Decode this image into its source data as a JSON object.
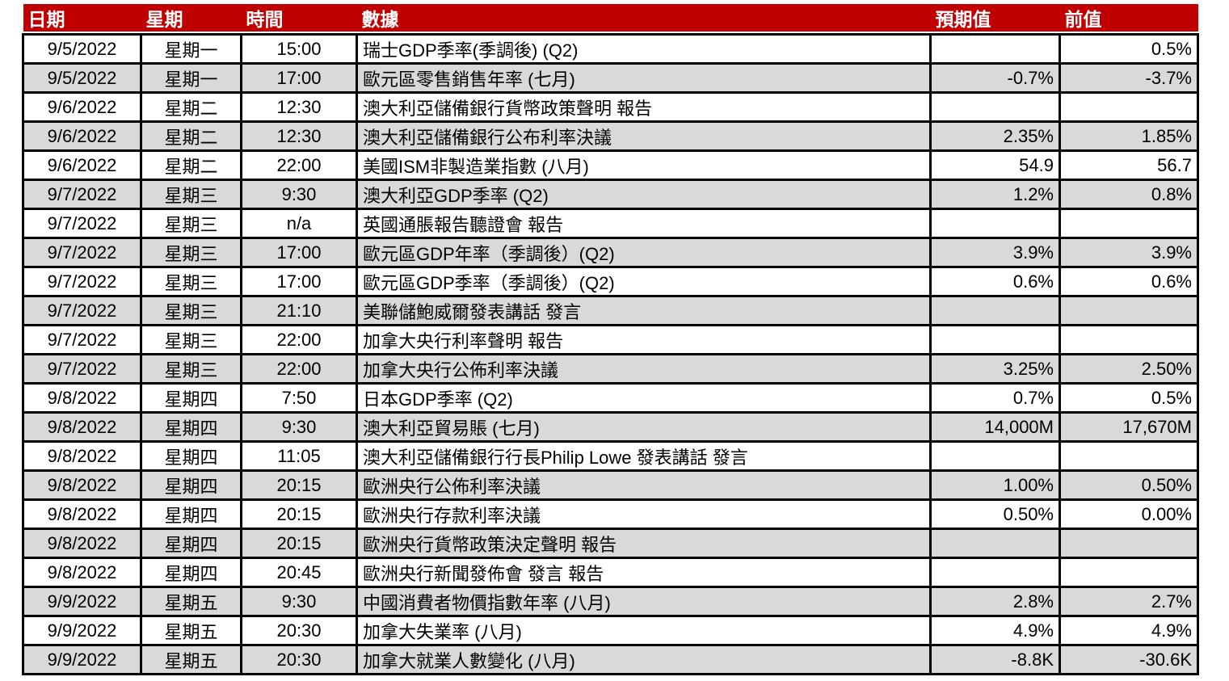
{
  "colors": {
    "header_bg": "#C00000",
    "header_fg": "#FFFFFF",
    "alt_row_bg": "#D9D9D9",
    "border": "#000000"
  },
  "header": {
    "date": "日期",
    "weekday": "星期",
    "time": "時間",
    "event": "數據",
    "expected": "預期值",
    "previous": "前值"
  },
  "table": {
    "rows": [
      {
        "date": "9/5/2022",
        "weekday": "星期一",
        "time": "15:00",
        "event": "瑞士GDP季率(季調後) (Q2)",
        "expected": "",
        "previous": "0.5%"
      },
      {
        "date": "9/5/2022",
        "weekday": "星期一",
        "time": "17:00",
        "event": "歐元區零售銷售年率 (七月)",
        "expected": "-0.7%",
        "previous": "-3.7%"
      },
      {
        "date": "9/6/2022",
        "weekday": "星期二",
        "time": "12:30",
        "event": "澳大利亞儲備銀行貨幣政策聲明 報告",
        "expected": "",
        "previous": ""
      },
      {
        "date": "9/6/2022",
        "weekday": "星期二",
        "time": "12:30",
        "event": "澳大利亞儲備銀行公布利率決議",
        "expected": "2.35%",
        "previous": "1.85%"
      },
      {
        "date": "9/6/2022",
        "weekday": "星期二",
        "time": "22:00",
        "event": "美國ISM非製造業指數 (八月)",
        "expected": "54.9",
        "previous": "56.7"
      },
      {
        "date": "9/7/2022",
        "weekday": "星期三",
        "time": "9:30",
        "event": "澳大利亞GDP季率 (Q2)",
        "expected": "1.2%",
        "previous": "0.8%"
      },
      {
        "date": "9/7/2022",
        "weekday": "星期三",
        "time": "n/a",
        "event": "英國通脹報告聽證會 報告",
        "expected": "",
        "previous": ""
      },
      {
        "date": "9/7/2022",
        "weekday": "星期三",
        "time": "17:00",
        "event": "歐元區GDP年率（季調後）(Q2)",
        "expected": "3.9%",
        "previous": "3.9%"
      },
      {
        "date": "9/7/2022",
        "weekday": "星期三",
        "time": "17:00",
        "event": "歐元區GDP季率（季調後）(Q2)",
        "expected": "0.6%",
        "previous": "0.6%"
      },
      {
        "date": "9/7/2022",
        "weekday": "星期三",
        "time": "21:10",
        "event": "美聯儲鮑威爾發表講話 發言",
        "expected": "",
        "previous": ""
      },
      {
        "date": "9/7/2022",
        "weekday": "星期三",
        "time": "22:00",
        "event": "加拿大央行利率聲明 報告",
        "expected": "",
        "previous": ""
      },
      {
        "date": "9/7/2022",
        "weekday": "星期三",
        "time": "22:00",
        "event": "加拿大央行公佈利率決議",
        "expected": "3.25%",
        "previous": "2.50%"
      },
      {
        "date": "9/8/2022",
        "weekday": "星期四",
        "time": "7:50",
        "event": "日本GDP季率 (Q2)",
        "expected": "0.7%",
        "previous": "0.5%"
      },
      {
        "date": "9/8/2022",
        "weekday": "星期四",
        "time": "9:30",
        "event": "澳大利亞貿易賬 (七月)",
        "expected": "14,000M",
        "previous": "17,670M"
      },
      {
        "date": "9/8/2022",
        "weekday": "星期四",
        "time": "11:05",
        "event": "澳大利亞儲備銀行行長Philip Lowe 發表講話 發言",
        "expected": "",
        "previous": ""
      },
      {
        "date": "9/8/2022",
        "weekday": "星期四",
        "time": "20:15",
        "event": "歐洲央行公佈利率決議",
        "expected": "1.00%",
        "previous": "0.50%"
      },
      {
        "date": "9/8/2022",
        "weekday": "星期四",
        "time": "20:15",
        "event": "歐洲央行存款利率決議",
        "expected": "0.50%",
        "previous": "0.00%"
      },
      {
        "date": "9/8/2022",
        "weekday": "星期四",
        "time": "20:15",
        "event": "歐洲央行貨幣政策決定聲明 報告",
        "expected": "",
        "previous": ""
      },
      {
        "date": "9/8/2022",
        "weekday": "星期四",
        "time": "20:45",
        "event": "歐洲央行新聞發佈會 發言 報告",
        "expected": "",
        "previous": ""
      },
      {
        "date": "9/9/2022",
        "weekday": "星期五",
        "time": "9:30",
        "event": "中國消費者物價指數年率 (八月)",
        "expected": "2.8%",
        "previous": "2.7%"
      },
      {
        "date": "9/9/2022",
        "weekday": "星期五",
        "time": "20:30",
        "event": "加拿大失業率 (八月)",
        "expected": "4.9%",
        "previous": "4.9%"
      },
      {
        "date": "9/9/2022",
        "weekday": "星期五",
        "time": "20:30",
        "event": "加拿大就業人數變化 (八月)",
        "expected": "-8.8K",
        "previous": "-30.6K"
      }
    ]
  }
}
